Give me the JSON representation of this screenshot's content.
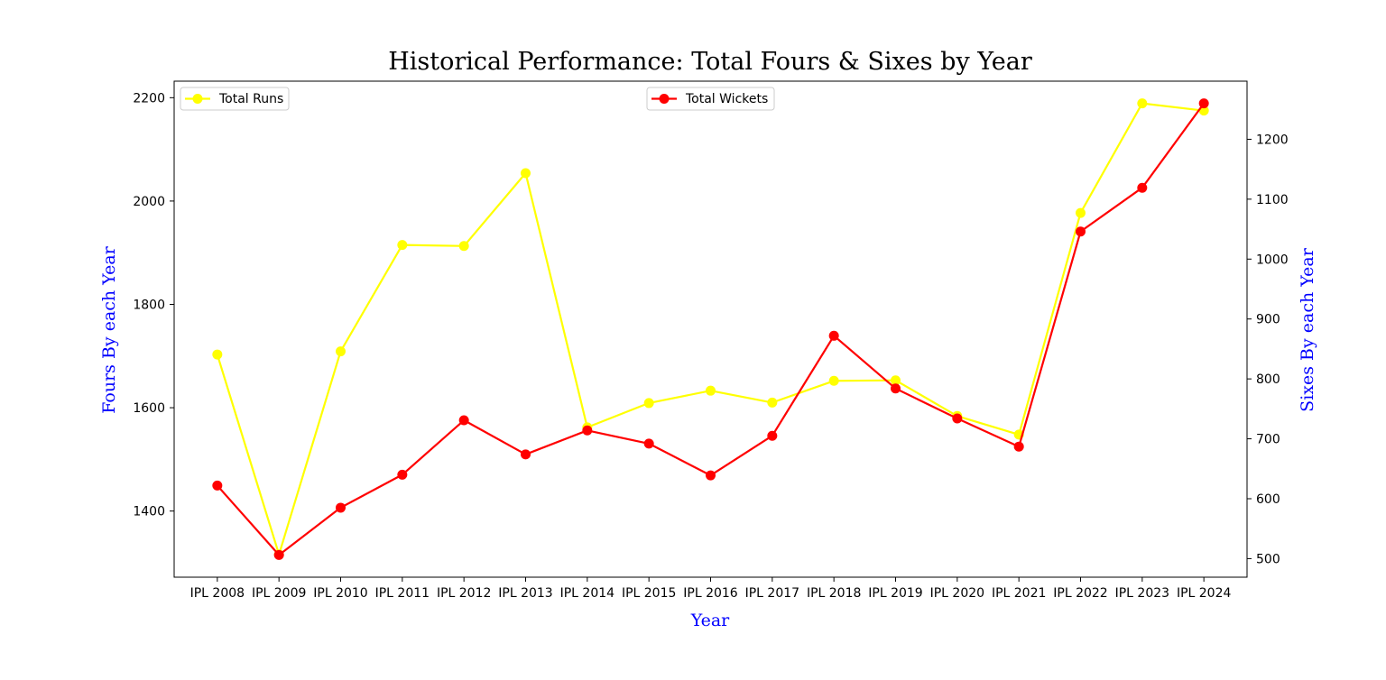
{
  "chart_data": {
    "type": "line",
    "title": "Historical Performance: Total Fours & Sixes by Year",
    "xlabel": "Year",
    "ylabel_left": "Fours By each Year",
    "ylabel_right": "Sixes By each Year",
    "categories": [
      "IPL 2008",
      "IPL 2009",
      "IPL 2010",
      "IPL 2011",
      "IPL 2012",
      "IPL 2013",
      "IPL 2014",
      "IPL 2015",
      "IPL 2016",
      "IPL 2017",
      "IPL 2018",
      "IPL 2019",
      "IPL 2020",
      "IPL 2021",
      "IPL 2022",
      "IPL 2023",
      "IPL 2024"
    ],
    "left_axis": {
      "ylim": [
        1272,
        2232
      ],
      "ticks": [
        1400,
        1600,
        1800,
        2000,
        2200
      ]
    },
    "right_axis": {
      "ylim": [
        469,
        1297
      ],
      "ticks": [
        500,
        600,
        700,
        800,
        900,
        1000,
        1100,
        1200
      ]
    },
    "series": [
      {
        "name": "Total Runs",
        "axis": "left",
        "color": "#ffff00",
        "values": [
          1703,
          1316,
          1709,
          1915,
          1913,
          2054,
          1562,
          1609,
          1633,
          1610,
          1652,
          1653,
          1584,
          1548,
          1977,
          2189,
          2175
        ]
      },
      {
        "name": "Total Wickets",
        "axis": "right",
        "color": "#ff0000",
        "values": [
          622,
          506,
          585,
          640,
          731,
          674,
          714,
          692,
          639,
          705,
          872,
          784,
          734,
          687,
          1046,
          1119,
          1260
        ]
      }
    ],
    "legends": [
      {
        "series": "Total Runs",
        "location": "upper left"
      },
      {
        "series": "Total Wickets",
        "location": "upper center"
      }
    ],
    "grid": false
  }
}
